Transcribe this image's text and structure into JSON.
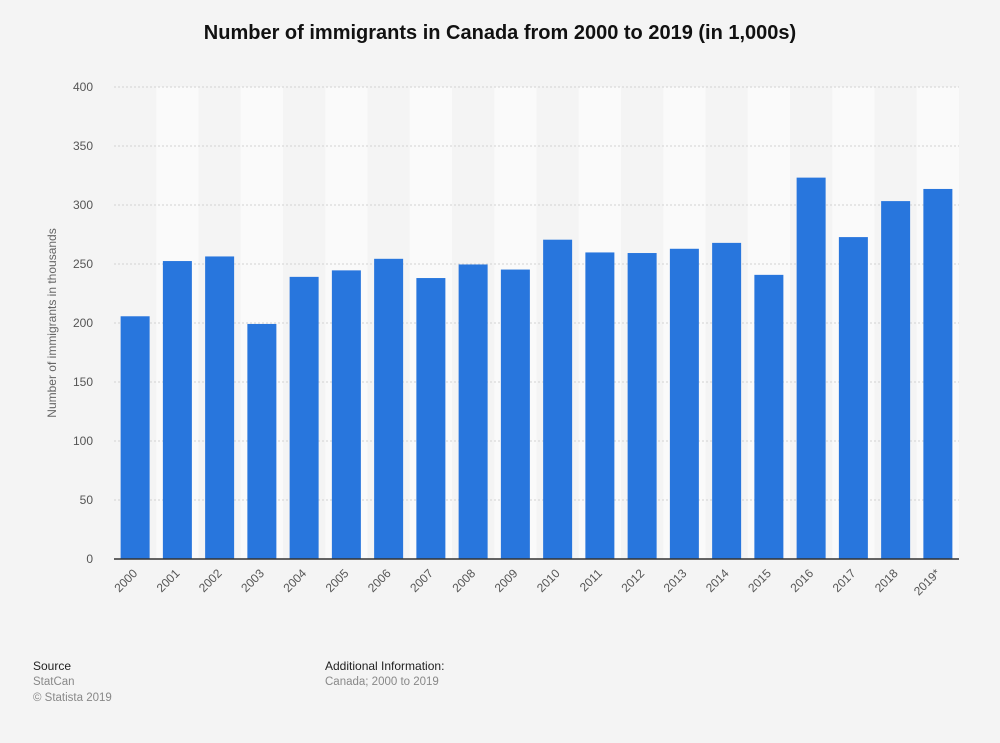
{
  "chart_data": {
    "type": "bar",
    "title": "Number of immigrants in Canada from 2000 to 2019 (in 1,000s)",
    "xlabel": "",
    "ylabel": "Number of immigrants in thousands",
    "categories": [
      "2000",
      "2001",
      "2002",
      "2003",
      "2004",
      "2005",
      "2006",
      "2007",
      "2008",
      "2009",
      "2010",
      "2011",
      "2012",
      "2013",
      "2014",
      "2015",
      "2016",
      "2017",
      "2018",
      "2019*"
    ],
    "values": [
      205.7,
      252.5,
      256.4,
      199.2,
      239.1,
      244.6,
      254.4,
      238.1,
      249.6,
      245.3,
      270.6,
      259.8,
      259.3,
      262.9,
      267.9,
      240.8,
      323.2,
      272.8,
      303.3,
      313.6
    ],
    "ylim": [
      0,
      400
    ],
    "yticks": [
      "0",
      "50",
      "100",
      "150",
      "200",
      "250",
      "300",
      "350",
      "400"
    ],
    "grid": true,
    "colors": {
      "bar": "#2876dd",
      "band": "#fafafa",
      "gridline": "#d2d2d2",
      "axis": "#333333"
    }
  },
  "footer": {
    "source_heading": "Source",
    "source_name": "StatCan",
    "copyright": "© Statista 2019",
    "info_heading": "Additional Information:",
    "info_text": "Canada; 2000 to 2019"
  }
}
